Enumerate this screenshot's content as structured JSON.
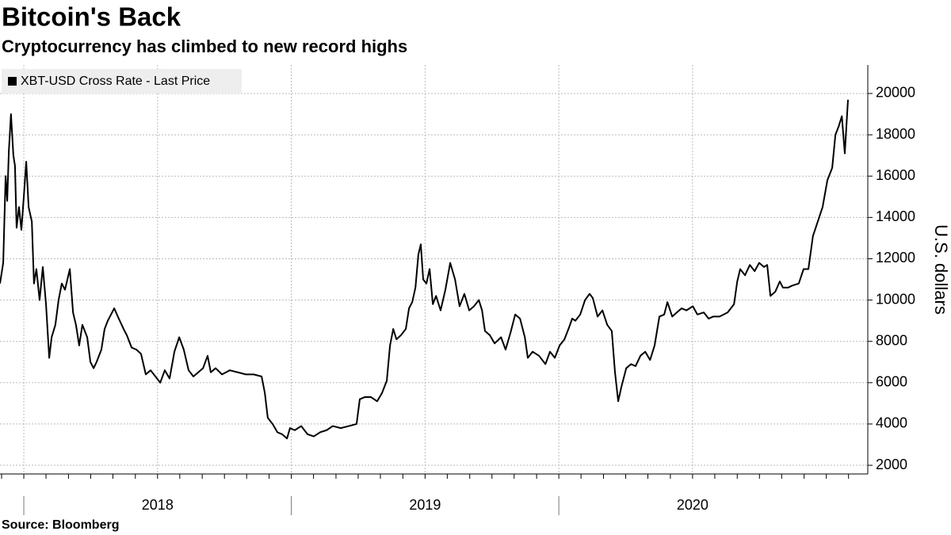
{
  "chart_data": {
    "type": "line",
    "title": "Bitcoin's Back",
    "subtitle": "Cryptocurrency has climbed to new record highs",
    "source": "Source: Bloomberg",
    "y_label": "U.S. dollars",
    "grid": true,
    "xlim": [
      2017.911,
      2021.155
    ],
    "ylim": [
      1580,
      21380
    ],
    "yticks": [
      2000,
      4000,
      6000,
      8000,
      10000,
      12000,
      14000,
      16000,
      18000,
      20000
    ],
    "xticks": [
      {
        "value": 2018.5,
        "label": "2018"
      },
      {
        "value": 2019.5,
        "label": "2019"
      },
      {
        "value": 2020.5,
        "label": "2020"
      }
    ],
    "year_ticks": [
      2018,
      2019,
      2020
    ],
    "xticks_minor": [
      2017.917,
      2018,
      2018.083,
      2018.167,
      2018.25,
      2018.333,
      2018.417,
      2018.5,
      2018.583,
      2018.667,
      2018.75,
      2018.833,
      2018.917,
      2019,
      2019.083,
      2019.167,
      2019.25,
      2019.333,
      2019.417,
      2019.5,
      2019.583,
      2019.667,
      2019.75,
      2019.833,
      2019.917,
      2020,
      2020.083,
      2020.167,
      2020.25,
      2020.333,
      2020.417,
      2020.5,
      2020.583,
      2020.667,
      2020.75,
      2020.833,
      2020.917,
      2021,
      2021.083
    ],
    "x": [
      2017.911,
      2017.923,
      2017.932,
      2017.938,
      2017.944,
      2017.952,
      2017.961,
      2017.967,
      2017.973,
      2017.982,
      2017.991,
      2018.0,
      2018.009,
      2018.018,
      2018.03,
      2018.038,
      2018.047,
      2018.059,
      2018.071,
      2018.083,
      2018.095,
      2018.104,
      2018.118,
      2018.13,
      2018.142,
      2018.154,
      2018.172,
      2018.184,
      2018.195,
      2018.207,
      2018.219,
      2018.237,
      2018.249,
      2018.261,
      2018.272,
      2018.29,
      2018.302,
      2018.314,
      2018.326,
      2018.338,
      2018.355,
      2018.373,
      2018.385,
      2018.403,
      2018.421,
      2018.438,
      2018.456,
      2018.474,
      2018.492,
      2018.51,
      2018.527,
      2018.545,
      2018.563,
      2018.581,
      2018.598,
      2018.616,
      2018.634,
      2018.652,
      2018.67,
      2018.687,
      2018.699,
      2018.717,
      2018.741,
      2018.77,
      2018.8,
      2018.83,
      2018.859,
      2018.889,
      2018.901,
      2018.912,
      2018.93,
      2018.948,
      2018.966,
      2018.984,
      2018.995,
      2019.013,
      2019.037,
      2019.061,
      2019.084,
      2019.108,
      2019.132,
      2019.155,
      2019.185,
      2019.215,
      2019.244,
      2019.256,
      2019.274,
      2019.298,
      2019.321,
      2019.339,
      2019.357,
      2019.369,
      2019.381,
      2019.393,
      2019.41,
      2019.428,
      2019.44,
      2019.452,
      2019.464,
      2019.475,
      2019.484,
      2019.493,
      2019.505,
      2019.517,
      2019.529,
      2019.541,
      2019.558,
      2019.576,
      2019.594,
      2019.612,
      2019.629,
      2019.647,
      2019.665,
      2019.683,
      2019.701,
      2019.713,
      2019.724,
      2019.742,
      2019.76,
      2019.784,
      2019.801,
      2019.819,
      2019.837,
      2019.855,
      2019.873,
      2019.884,
      2019.902,
      2019.926,
      2019.95,
      2019.967,
      2019.985,
      2020.003,
      2020.021,
      2020.039,
      2020.05,
      2020.062,
      2020.08,
      2020.098,
      2020.115,
      2020.127,
      2020.145,
      2020.163,
      2020.181,
      2020.198,
      2020.21,
      2020.222,
      2020.234,
      2020.252,
      2020.27,
      2020.287,
      2020.305,
      2020.323,
      2020.341,
      2020.358,
      2020.376,
      2020.394,
      2020.406,
      2020.424,
      2020.441,
      2020.459,
      2020.477,
      2020.501,
      2020.518,
      2020.542,
      2020.56,
      2020.577,
      2020.601,
      2020.631,
      2020.655,
      2020.667,
      2020.678,
      2020.696,
      2020.714,
      2020.732,
      2020.749,
      2020.767,
      2020.779,
      2020.791,
      2020.809,
      2020.826,
      2020.838,
      2020.856,
      2020.873,
      2020.897,
      2020.915,
      2020.933,
      2020.95,
      2020.968,
      2020.986,
      2021.004,
      2021.022,
      2021.034,
      2021.046,
      2021.058,
      2021.069,
      2021.081
    ],
    "series": [
      {
        "name": "XBT-USD Cross Rate - Last Price",
        "color": "#000000",
        "values": [
          10800,
          11800,
          16000,
          14800,
          17200,
          19000,
          17000,
          16500,
          13500,
          14500,
          13400,
          15000,
          16700,
          14500,
          13800,
          10800,
          11500,
          10000,
          11600,
          9800,
          7200,
          8200,
          8800,
          10000,
          10800,
          10500,
          11500,
          9400,
          8800,
          7800,
          8800,
          8200,
          7000,
          6700,
          7000,
          7600,
          8600,
          9000,
          9300,
          9600,
          9100,
          8600,
          8300,
          7700,
          7600,
          7400,
          6400,
          6600,
          6300,
          6000,
          6600,
          6200,
          7500,
          8200,
          7600,
          6600,
          6300,
          6500,
          6700,
          7300,
          6500,
          6700,
          6400,
          6600,
          6500,
          6400,
          6400,
          6300,
          5500,
          4300,
          4000,
          3600,
          3500,
          3300,
          3800,
          3700,
          3900,
          3500,
          3400,
          3600,
          3700,
          3900,
          3800,
          3900,
          4000,
          5200,
          5300,
          5300,
          5100,
          5500,
          6100,
          7800,
          8600,
          8100,
          8300,
          8600,
          9600,
          9900,
          10600,
          12200,
          12700,
          11000,
          10800,
          11500,
          9800,
          10200,
          9500,
          10500,
          11800,
          11000,
          9700,
          10300,
          9500,
          9700,
          10000,
          9500,
          8500,
          8300,
          7900,
          8200,
          7600,
          8400,
          9300,
          9100,
          8200,
          7200,
          7500,
          7300,
          6900,
          7500,
          7200,
          7800,
          8100,
          8700,
          9100,
          9000,
          9300,
          10000,
          10300,
          10100,
          9200,
          9500,
          8800,
          8500,
          6500,
          5100,
          5800,
          6700,
          6900,
          6800,
          7300,
          7500,
          7100,
          7800,
          9200,
          9300,
          9900,
          9200,
          9400,
          9600,
          9500,
          9700,
          9300,
          9400,
          9100,
          9200,
          9200,
          9400,
          9800,
          10900,
          11500,
          11200,
          11700,
          11400,
          11800,
          11600,
          11700,
          10200,
          10400,
          10900,
          10600,
          10600,
          10700,
          10800,
          11500,
          11500,
          13100,
          13800,
          14500,
          15800,
          16400,
          18000,
          18400,
          18900,
          17100,
          19700
        ]
      }
    ]
  }
}
